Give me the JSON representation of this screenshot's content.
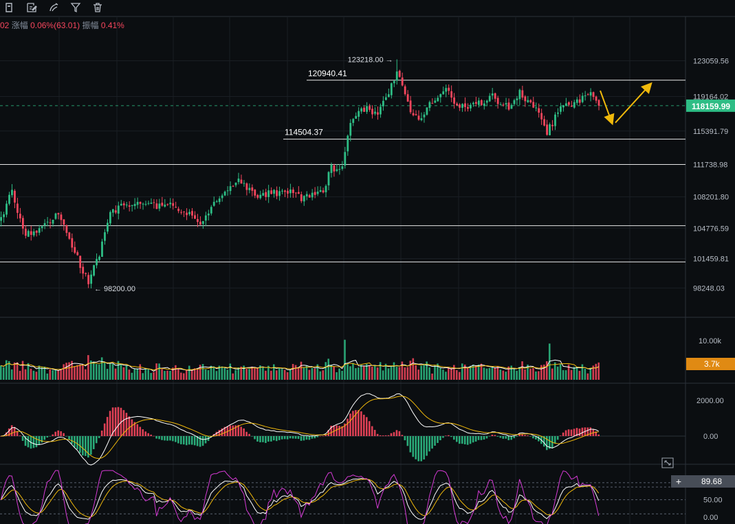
{
  "toolbar": {
    "icons": [
      "price-tag-icon",
      "edit-note-icon",
      "drawing-tool-icon",
      "filter-icon",
      "trash-icon"
    ]
  },
  "info_bar": {
    "prefix": "02",
    "change_label": "涨幅",
    "change_value": "0.06%(63.01)",
    "amplitude_label": "振幅",
    "amplitude_value": "0.41%"
  },
  "colors": {
    "background": "#0b0e11",
    "grid": "#1a1e24",
    "up": "#2ebd85",
    "down": "#f6465d",
    "yellow": "#f0b90b",
    "white_line": "#e8e8e8",
    "pink": "#d63ad6",
    "current_price_bg": "#2ebd85",
    "volume_badge_bg": "#e08a13"
  },
  "chart_data": [
    {
      "type": "candlestick",
      "name": "price",
      "y_axis_ticks": [
        123059.56,
        119164.02,
        115391.79,
        111738.98,
        108201.8,
        104776.59,
        101459.81,
        98248.03
      ],
      "y_axis_tick_labels": [
        "123059.56",
        "119164.02",
        "115391.79",
        "111738.98",
        "108201.80",
        "104776.59",
        "101459.81",
        "98248.03"
      ],
      "ylim": [
        96700,
        125200
      ],
      "current_price": "118159.99",
      "ohlc_anchors": [
        {
          "i": 0,
          "close": 106000
        },
        {
          "i": 4,
          "close": 108800
        },
        {
          "i": 8,
          "close": 104300
        },
        {
          "i": 15,
          "close": 104700
        },
        {
          "i": 21,
          "close": 106200
        },
        {
          "i": 26,
          "close": 102800
        },
        {
          "i": 32,
          "close": 98800
        },
        {
          "i": 36,
          "close": 102000
        },
        {
          "i": 40,
          "close": 106500
        },
        {
          "i": 46,
          "close": 107400
        },
        {
          "i": 54,
          "close": 107200
        },
        {
          "i": 63,
          "close": 107600
        },
        {
          "i": 68,
          "close": 106300
        },
        {
          "i": 74,
          "close": 105400
        },
        {
          "i": 80,
          "close": 108300
        },
        {
          "i": 86,
          "close": 110000
        },
        {
          "i": 93,
          "close": 108300
        },
        {
          "i": 100,
          "close": 108600
        },
        {
          "i": 106,
          "close": 109000
        },
        {
          "i": 110,
          "close": 108000
        },
        {
          "i": 118,
          "close": 109000
        },
        {
          "i": 121,
          "close": 111300
        },
        {
          "i": 125,
          "close": 111500
        },
        {
          "i": 128,
          "close": 116200
        },
        {
          "i": 132,
          "close": 118000
        },
        {
          "i": 138,
          "close": 117200
        },
        {
          "i": 143,
          "close": 120200
        },
        {
          "i": 145,
          "close": 122100
        },
        {
          "i": 148,
          "close": 119400
        },
        {
          "i": 150,
          "close": 117200
        },
        {
          "i": 153,
          "close": 116800
        },
        {
          "i": 159,
          "close": 119000
        },
        {
          "i": 163,
          "close": 119800
        },
        {
          "i": 168,
          "close": 118000
        },
        {
          "i": 175,
          "close": 118500
        },
        {
          "i": 180,
          "close": 119100
        },
        {
          "i": 186,
          "close": 117800
        },
        {
          "i": 190,
          "close": 119500
        },
        {
          "i": 195,
          "close": 118300
        },
        {
          "i": 200,
          "close": 115200
        },
        {
          "i": 205,
          "close": 117900
        },
        {
          "i": 210,
          "close": 118300
        },
        {
          "i": 215,
          "close": 119600
        },
        {
          "i": 219,
          "close": 118160
        }
      ],
      "annotations": [
        {
          "text": "123218.00",
          "price": 123218,
          "arrow": "right"
        },
        {
          "text": "98200.00",
          "price": 98200,
          "arrow": "left"
        }
      ],
      "horizontal_lines": [
        {
          "price": 120940.41,
          "label": "120940.41"
        },
        {
          "price": 114504.37,
          "label": "114504.37"
        },
        {
          "price": 111738.98,
          "label": ""
        },
        {
          "price": 105050,
          "label": ""
        },
        {
          "price": 101100,
          "label": ""
        }
      ],
      "projection_arrows": [
        {
          "from_price": 119800,
          "to_price": 116300,
          "direction": "down"
        },
        {
          "from_price": 116300,
          "to_price": 120500,
          "direction": "up"
        }
      ]
    },
    {
      "type": "bar",
      "name": "volume",
      "y_axis_tick_labels": [
        "10.00k"
      ],
      "current_value": "3.7k",
      "ylim": [
        0,
        14500
      ]
    },
    {
      "type": "bar",
      "name": "macd",
      "y_axis_tick_labels": [
        "2000.00",
        "0.00"
      ],
      "ylim": [
        -1350,
        2700
      ]
    },
    {
      "type": "line",
      "name": "kdj",
      "y_axis_tick_labels": [
        "50.00",
        "0.00"
      ],
      "current_value": "89.68",
      "ylim": [
        0,
        115
      ]
    }
  ]
}
